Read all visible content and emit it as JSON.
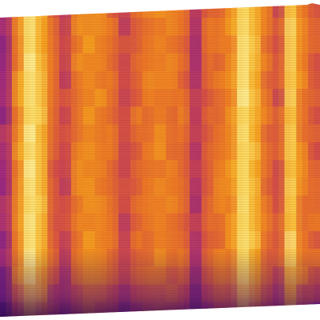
{
  "image": {
    "kind": "thermal-style-heatmap",
    "colormap": "inferno-like",
    "palette": [
      "#3a0f5e",
      "#6a1d86",
      "#a12b7d",
      "#d24a4a",
      "#ee7a25",
      "#f7a51e",
      "#fcd65a",
      "#fdf3a4"
    ],
    "background": "#ffffff",
    "pattern": "vertical-streaks",
    "band_intensity": [
      0.3,
      0.64,
      0.95,
      0.78,
      0.5,
      0.4,
      0.6,
      0.66,
      0.62,
      0.52,
      0.4,
      0.53,
      0.58,
      0.62,
      0.57,
      0.54,
      0.32,
      0.52,
      0.57,
      0.64,
      0.94,
      0.76,
      0.56,
      0.44,
      0.88,
      0.6,
      0.5
    ]
  }
}
